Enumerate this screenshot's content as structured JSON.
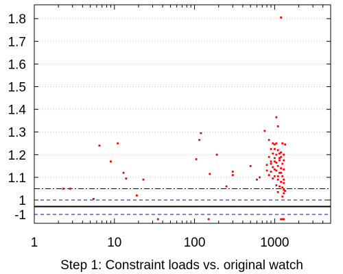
{
  "chart_data": {
    "type": "scatter",
    "title": "",
    "xlabel": "Step 1: Constraint loads vs. original watch",
    "ylabel": "",
    "x_scale": "log",
    "xlim": [
      1,
      5000
    ],
    "ylim": [
      1.0,
      1.85
    ],
    "grid": "y-dotted",
    "legend": "none",
    "x_ticks": [
      {
        "value": 1,
        "label": "1"
      },
      {
        "value": 10,
        "label": "10"
      },
      {
        "value": 100,
        "label": "100"
      },
      {
        "value": 1000,
        "label": "1000"
      }
    ],
    "y_ticks": [
      {
        "value": 1.0,
        "label": "1"
      },
      {
        "value": 1.1,
        "label": "1.1"
      },
      {
        "value": 1.2,
        "label": "1.2"
      },
      {
        "value": 1.3,
        "label": "1.3"
      },
      {
        "value": 1.4,
        "label": "1.4"
      },
      {
        "value": 1.5,
        "label": "1.5"
      },
      {
        "value": 1.6,
        "label": "1.6"
      },
      {
        "value": 1.7,
        "label": "1.7"
      },
      {
        "value": 1.8,
        "label": "1.8"
      }
    ],
    "lower_panel": {
      "tick_label": "-1",
      "y_value": -1
    },
    "reference_lines": [
      {
        "y": 1.05,
        "style": "dash-dot",
        "color": "#000000"
      },
      {
        "y": 1.0,
        "style": "dashed",
        "color": "#0000cc"
      },
      {
        "y": -1,
        "style": "dashed",
        "color": "#0000cc",
        "panel": "lower"
      }
    ],
    "series": [
      {
        "color": "#ff0000",
        "points": [
          [
            1200,
            1.805
          ],
          [
            1050,
            1.365
          ],
          [
            1100,
            1.325
          ],
          [
            750,
            1.305
          ],
          [
            850,
            1.265
          ],
          [
            950,
            1.25
          ],
          [
            1000,
            1.245
          ],
          [
            1050,
            1.25
          ],
          [
            1250,
            1.25
          ],
          [
            1350,
            1.245
          ],
          [
            900,
            1.225
          ],
          [
            1000,
            1.225
          ],
          [
            1100,
            1.22
          ],
          [
            950,
            1.205
          ],
          [
            1050,
            1.2
          ],
          [
            1150,
            1.205
          ],
          [
            850,
            1.19
          ],
          [
            1000,
            1.185
          ],
          [
            1200,
            1.19
          ],
          [
            900,
            1.17
          ],
          [
            1050,
            1.165
          ],
          [
            1150,
            1.175
          ],
          [
            1300,
            1.175
          ],
          [
            1250,
            1.16
          ],
          [
            800,
            1.155
          ],
          [
            950,
            1.145
          ],
          [
            1100,
            1.15
          ],
          [
            1000,
            1.135
          ],
          [
            1200,
            1.14
          ],
          [
            1300,
            1.135
          ],
          [
            900,
            1.125
          ],
          [
            1050,
            1.13
          ],
          [
            1150,
            1.12
          ],
          [
            850,
            1.11
          ],
          [
            1000,
            1.105
          ],
          [
            1250,
            1.105
          ],
          [
            950,
            1.095
          ],
          [
            1100,
            1.09
          ],
          [
            1200,
            1.08
          ],
          [
            1300,
            1.075
          ],
          [
            1050,
            1.065
          ],
          [
            1150,
            1.06
          ],
          [
            1250,
            1.055
          ],
          [
            1100,
            1.035
          ],
          [
            1300,
            1.03
          ],
          [
            1250,
            1.015
          ],
          [
            1300,
            1.045
          ],
          [
            1350,
            1.04
          ],
          [
            1150,
            1.185
          ],
          [
            1300,
            1.2
          ],
          [
            1200,
            1.21
          ],
          [
            1000,
            1.17
          ],
          [
            1100,
            1.105
          ],
          [
            800,
            1.13
          ],
          [
            900,
            1.16
          ],
          [
            600,
            1.09
          ],
          [
            650,
            1.1
          ],
          [
            500,
            1.15
          ],
          [
            300,
            1.11
          ],
          [
            300,
            1.125
          ],
          [
            250,
            1.06
          ],
          [
            190,
            1.2
          ],
          [
            155,
            1.115
          ],
          [
            120,
            1.295
          ],
          [
            115,
            1.265
          ],
          [
            105,
            1.18
          ],
          [
            23,
            1.09
          ],
          [
            19,
            1.02
          ],
          [
            13,
            1.12
          ],
          [
            14,
            1.095
          ],
          [
            11,
            1.25
          ],
          [
            9,
            1.17
          ],
          [
            6.5,
            1.24
          ],
          [
            5.5,
            1.005
          ],
          [
            2.8,
            1.05
          ],
          [
            2.3,
            1.05
          ],
          [
            1200,
            1.12
          ],
          [
            1300,
            1.09
          ]
        ],
        "lower_points": [
          35,
          150,
          1200,
          1250,
          1300
        ]
      }
    ]
  }
}
